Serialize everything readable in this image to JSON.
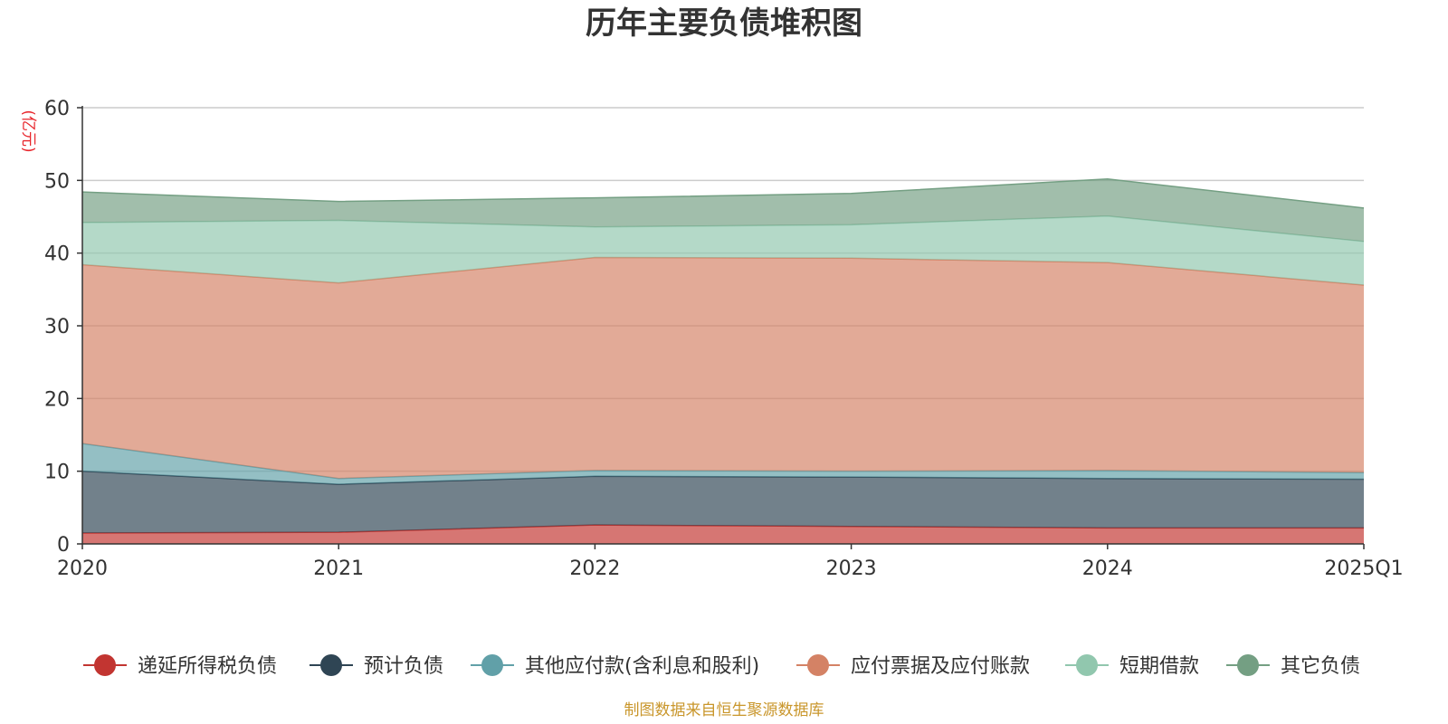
{
  "chart_data": {
    "type": "area",
    "title": "历年主要负债堆积图",
    "ylabel": "(亿元)",
    "xlabel": "",
    "ylim": [
      0,
      60
    ],
    "yticks": [
      0,
      10,
      20,
      30,
      40,
      50,
      60
    ],
    "grid": true,
    "stacked": true,
    "legend_position": "bottom",
    "categories": [
      "2020",
      "2021",
      "2022",
      "2023",
      "2024",
      "2025Q1"
    ],
    "series": [
      {
        "name": "递延所得税负债",
        "color": "#c23531",
        "values": [
          1.5,
          1.6,
          2.6,
          2.4,
          2.2,
          2.2
        ]
      },
      {
        "name": "预计负债",
        "color": "#2f4554",
        "values": [
          8.5,
          6.6,
          6.7,
          6.8,
          6.8,
          6.7
        ]
      },
      {
        "name": "其他应付款(含利息和股利)",
        "color": "#61a0a8",
        "values": [
          3.8,
          0.8,
          0.8,
          0.8,
          1.1,
          0.9
        ]
      },
      {
        "name": "应付票据及应付账款",
        "color": "#d48265",
        "values": [
          24.6,
          26.9,
          29.3,
          29.3,
          28.6,
          25.8
        ]
      },
      {
        "name": "短期借款",
        "color": "#91c7ae",
        "values": [
          5.8,
          8.6,
          4.2,
          4.6,
          6.4,
          6.0
        ]
      },
      {
        "name": "其它负债",
        "color": "#749f83",
        "values": [
          4.2,
          2.6,
          4.0,
          4.3,
          5.1,
          4.6
        ]
      }
    ],
    "source_note": "制图数据来自恒生聚源数据库"
  }
}
